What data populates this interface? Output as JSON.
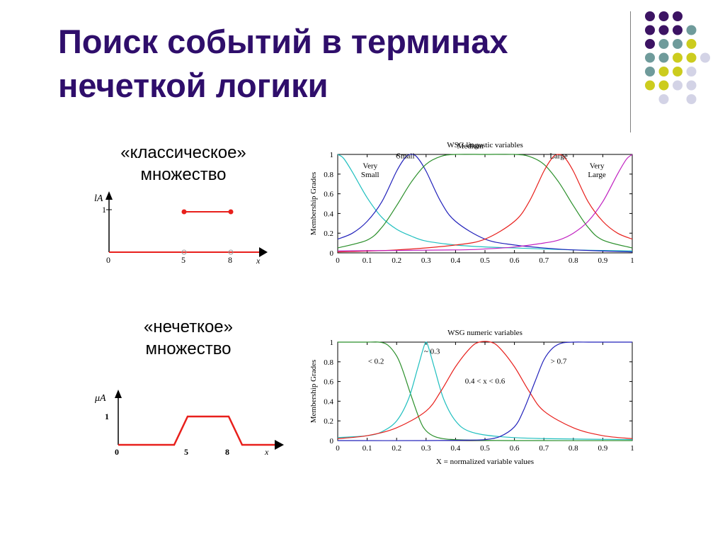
{
  "slide": {
    "title_line1": "Поиск событий в терминах",
    "title_line2": "нечеткой логики",
    "colors": {
      "title": "#2f0e6b",
      "accent_red": "#e8201c",
      "dot_purple": "#3c1363",
      "dot_teal": "#6f9b9b",
      "dot_yellow": "#cccc1e",
      "dot_lavender": "#d3d3e6"
    }
  },
  "decor": {
    "dot_grid": [
      [
        "purple",
        "purple",
        "purple",
        null
      ],
      [
        "purple",
        "purple",
        "purple",
        "teal"
      ],
      [
        "purple",
        "teal",
        "teal",
        "yellow"
      ],
      [
        "teal",
        "teal",
        "yellow",
        "yellow",
        "lavender"
      ],
      [
        "teal",
        "yellow",
        "yellow",
        "lavender"
      ],
      [
        "yellow",
        "yellow",
        "lavender",
        "lavender"
      ],
      [
        null,
        "lavender",
        null,
        "lavender"
      ]
    ]
  },
  "crisp": {
    "caption_line1": "«классическое»",
    "caption_line2": "множество",
    "y_label": "lA",
    "y_tick": "1",
    "x_ticks": [
      "0",
      "5",
      "8",
      "x"
    ]
  },
  "fuzzy": {
    "caption_line1": "«нечеткое»",
    "caption_line2": "множество",
    "y_label": "μA",
    "y_tick": "1",
    "x_ticks": [
      "0",
      "5",
      "8",
      "x"
    ]
  },
  "chart_data": [
    {
      "type": "line",
      "title": "WSG  lingustic     variables",
      "xlabel": "",
      "ylabel": "Membership Grades",
      "xlim": [
        0,
        1
      ],
      "ylim": [
        0,
        1
      ],
      "x_ticks": [
        "0",
        "0.1",
        "0.2",
        "0.3",
        "0.4",
        "0.5",
        "0.6",
        "0.7",
        "0.8",
        "0.9",
        "1"
      ],
      "y_ticks": [
        "0",
        "0.2",
        "0.4",
        "0.6",
        "0.8",
        "1"
      ],
      "annotations": [
        {
          "text": "Very",
          "x": 0.11,
          "y": 0.86
        },
        {
          "text": "Small",
          "x": 0.11,
          "y": 0.77
        },
        {
          "text": "Small",
          "x": 0.23,
          "y": 0.96
        },
        {
          "text": "Medium",
          "x": 0.45,
          "y": 1.06
        },
        {
          "text": "Large",
          "x": 0.75,
          "y": 0.96
        },
        {
          "text": "Very",
          "x": 0.88,
          "y": 0.86
        },
        {
          "text": "Large",
          "x": 0.88,
          "y": 0.77
        }
      ],
      "series": [
        {
          "color": "#1fbfbf",
          "x": [
            0,
            0.02,
            0.05,
            0.1,
            0.15,
            0.2,
            0.25,
            0.3,
            0.4,
            0.5,
            0.6,
            0.8,
            1
          ],
          "y": [
            1,
            0.96,
            0.82,
            0.56,
            0.36,
            0.24,
            0.17,
            0.12,
            0.08,
            0.06,
            0.05,
            0.03,
            0.02
          ]
        },
        {
          "color": "#2222bb",
          "x": [
            0,
            0.05,
            0.1,
            0.15,
            0.2,
            0.23,
            0.25,
            0.27,
            0.3,
            0.35,
            0.4,
            0.5,
            0.6,
            0.7,
            0.8,
            1
          ],
          "y": [
            0.14,
            0.2,
            0.32,
            0.52,
            0.83,
            0.97,
            1,
            0.97,
            0.83,
            0.52,
            0.32,
            0.14,
            0.08,
            0.05,
            0.03,
            0.01
          ]
        },
        {
          "color": "#2a8f2a",
          "x": [
            0,
            0.1,
            0.15,
            0.2,
            0.25,
            0.3,
            0.35,
            0.4,
            0.5,
            0.6,
            0.65,
            0.7,
            0.75,
            0.8,
            0.85,
            0.9,
            1
          ],
          "y": [
            0.05,
            0.13,
            0.26,
            0.48,
            0.72,
            0.9,
            0.98,
            1,
            1,
            1,
            0.98,
            0.9,
            0.72,
            0.48,
            0.26,
            0.13,
            0.05
          ]
        },
        {
          "color": "#e8201c",
          "x": [
            0,
            0.2,
            0.4,
            0.5,
            0.6,
            0.65,
            0.7,
            0.73,
            0.75,
            0.77,
            0.8,
            0.85,
            0.9,
            0.95,
            1
          ],
          "y": [
            0.01,
            0.03,
            0.08,
            0.14,
            0.32,
            0.52,
            0.83,
            0.97,
            1,
            0.97,
            0.83,
            0.52,
            0.32,
            0.2,
            0.14
          ]
        },
        {
          "color": "#c020c0",
          "x": [
            0,
            0.4,
            0.5,
            0.6,
            0.7,
            0.75,
            0.8,
            0.85,
            0.9,
            0.95,
            0.98,
            1
          ],
          "y": [
            0.02,
            0.03,
            0.04,
            0.06,
            0.1,
            0.13,
            0.2,
            0.32,
            0.52,
            0.8,
            0.95,
            1
          ]
        }
      ]
    },
    {
      "type": "line",
      "title": "WSG numeric variables",
      "xlabel": "X = normalized variable values",
      "ylabel": "Membership Grades",
      "xlim": [
        0,
        1
      ],
      "ylim": [
        0,
        1
      ],
      "x_ticks": [
        "0",
        "0.1",
        "0.2",
        "0.3",
        "0.4",
        "0.5",
        "0.6",
        "0.7",
        "0.8",
        "0.9",
        "1"
      ],
      "y_ticks": [
        "0",
        "0.2",
        "0.4",
        "0.6",
        "0.8",
        "1"
      ],
      "annotations": [
        {
          "text": "< 0.2",
          "x": 0.13,
          "y": 0.78
        },
        {
          "text": "~ 0.3",
          "x": 0.32,
          "y": 0.88
        },
        {
          "text": "0.4 < x < 0.6",
          "x": 0.5,
          "y": 0.58
        },
        {
          "text": "> 0.7",
          "x": 0.75,
          "y": 0.78
        }
      ],
      "series": [
        {
          "color": "#2a8f2a",
          "x": [
            0,
            0.1,
            0.14,
            0.17,
            0.2,
            0.22,
            0.25,
            0.28,
            0.3,
            0.33,
            0.37,
            0.45,
            0.6,
            1
          ],
          "y": [
            1,
            1,
            1,
            0.97,
            0.86,
            0.72,
            0.45,
            0.2,
            0.1,
            0.04,
            0.015,
            0.005,
            0,
            0
          ]
        },
        {
          "color": "#1fbfbf",
          "x": [
            0,
            0.1,
            0.15,
            0.2,
            0.24,
            0.27,
            0.29,
            0.3,
            0.31,
            0.33,
            0.36,
            0.4,
            0.45,
            0.55,
            0.7,
            1
          ],
          "y": [
            0.03,
            0.05,
            0.09,
            0.2,
            0.42,
            0.72,
            0.93,
            1,
            0.93,
            0.72,
            0.42,
            0.2,
            0.09,
            0.04,
            0.02,
            0.01
          ]
        },
        {
          "color": "#e8201c",
          "x": [
            0,
            0.1,
            0.2,
            0.3,
            0.35,
            0.4,
            0.45,
            0.48,
            0.52,
            0.55,
            0.6,
            0.65,
            0.7,
            0.8,
            0.9,
            1
          ],
          "y": [
            0.02,
            0.05,
            0.13,
            0.3,
            0.5,
            0.75,
            0.94,
            1,
            1,
            0.94,
            0.75,
            0.5,
            0.3,
            0.13,
            0.05,
            0.02
          ]
        },
        {
          "color": "#2222bb",
          "x": [
            0,
            0.3,
            0.45,
            0.5,
            0.55,
            0.6,
            0.63,
            0.67,
            0.7,
            0.73,
            0.76,
            0.8,
            0.85,
            0.9,
            1
          ],
          "y": [
            0,
            0,
            0.005,
            0.01,
            0.04,
            0.14,
            0.3,
            0.6,
            0.82,
            0.94,
            0.99,
            1,
            1,
            1,
            1
          ]
        }
      ]
    }
  ]
}
